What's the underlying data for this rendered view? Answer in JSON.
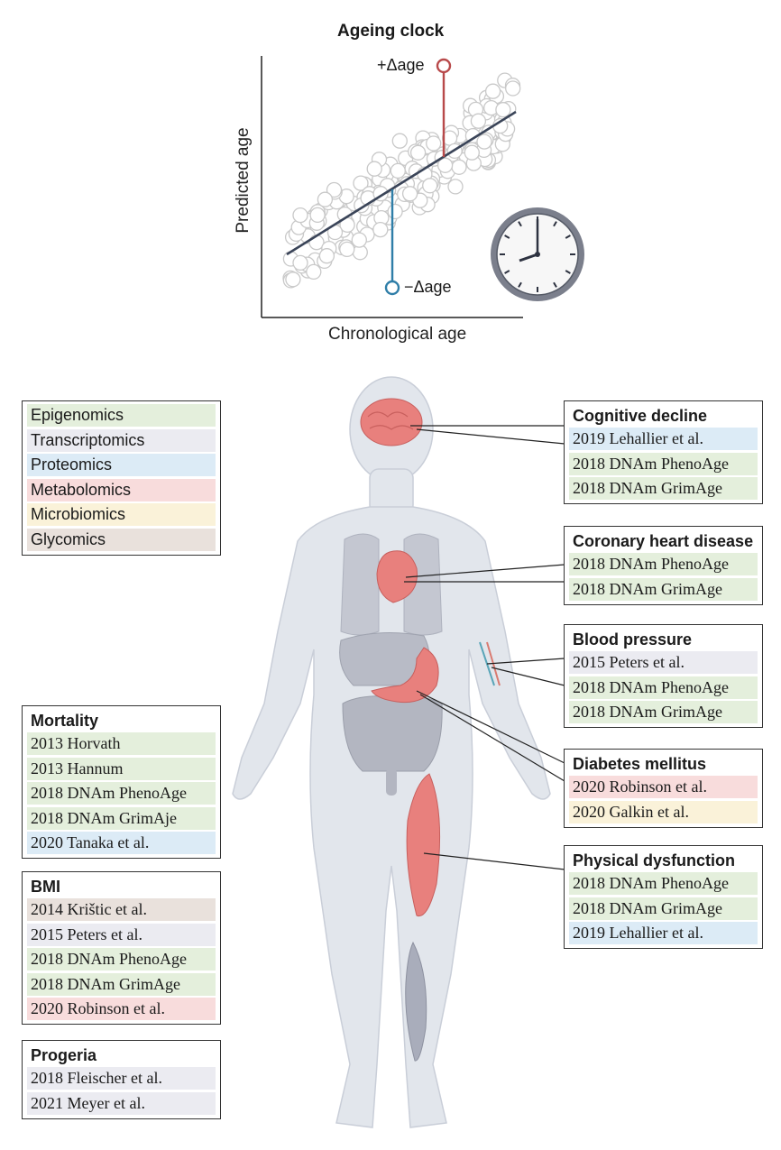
{
  "chart_data": {
    "type": "scatter",
    "title": "Ageing clock",
    "xlabel": "Chronological age",
    "ylabel": "Predicted age",
    "annotations": {
      "positive": "+Δage",
      "negative": "−Δage"
    },
    "colors": {
      "positive": "#b8494a",
      "negative": "#2f7ea8",
      "trend": "#3a4458",
      "points": "#c9c9c9"
    },
    "grid": false
  },
  "legend": {
    "items": [
      {
        "label": "Epigenomics",
        "color": "#e4efdc"
      },
      {
        "label": "Transcriptomics",
        "color": "#ebebf1"
      },
      {
        "label": "Proteomics",
        "color": "#dcebf6"
      },
      {
        "label": "Metabolomics",
        "color": "#f8dcdc"
      },
      {
        "label": "Microbiomics",
        "color": "#faf2d9"
      },
      {
        "label": "Glycomics",
        "color": "#e9e1dc"
      }
    ]
  },
  "left_boxes": {
    "mortality": {
      "title": "Mortality",
      "items": [
        "2013 Horvath",
        "2013 Hannum",
        "2018 DNAm PhenoAge",
        "2018 DNAm GrimAje",
        "2020 Tanaka et al."
      ]
    },
    "bmi": {
      "title": "BMI",
      "items": [
        "2014 Krištic et al.",
        "2015 Peters et al.",
        "2018 DNAm PhenoAge",
        "2018 DNAm GrimAge",
        "2020 Robinson et al."
      ]
    },
    "progeria": {
      "title": "Progeria",
      "items": [
        "2018 Fleischer et al.",
        "2021 Meyer et al."
      ]
    }
  },
  "right_boxes": {
    "cognitive": {
      "title": "Cognitive decline",
      "items": [
        "2019 Lehallier et al.",
        "2018 DNAm PhenoAge",
        "2018 DNAm GrimAge"
      ]
    },
    "coronary": {
      "title": "Coronary heart disease",
      "items": [
        "2018 DNAm PhenoAge",
        "2018 DNAm GrimAge"
      ]
    },
    "blood_pressure": {
      "title": "Blood pressure",
      "items": [
        "2015 Peters et al.",
        "2018 DNAm PhenoAge",
        "2018 DNAm GrimAge"
      ]
    },
    "diabetes": {
      "title": "Diabetes mellitus",
      "items": [
        "2020 Robinson et al.",
        "2020 Galkin et al."
      ]
    },
    "physical": {
      "title": "Physical dysfunction",
      "items": [
        "2018 DNAm PhenoAge",
        "2018 DNAm GrimAge",
        "2019 Lehallier et al."
      ]
    }
  }
}
